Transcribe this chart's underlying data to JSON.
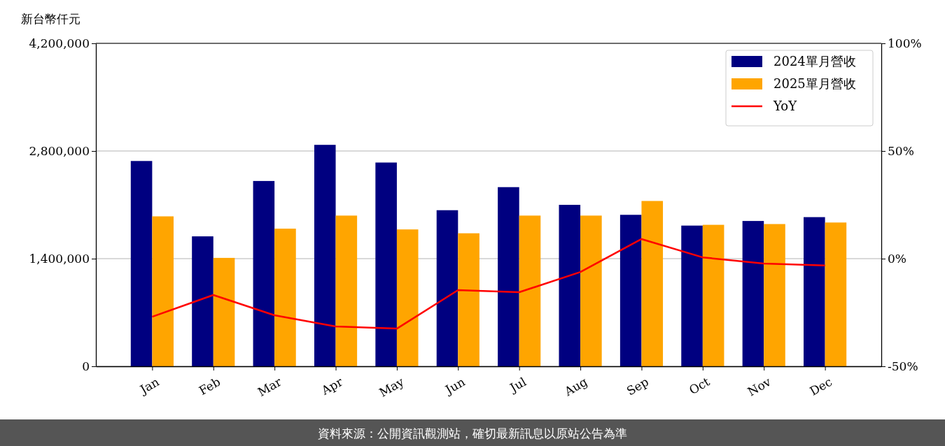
{
  "chart_data": {
    "type": "bar",
    "ylabel": "新台幣仟元",
    "categories": [
      "Jan",
      "Feb",
      "Mar",
      "Apr",
      "May",
      "Jun",
      "Jul",
      "Aug",
      "Sep",
      "Oct",
      "Nov",
      "Dec"
    ],
    "series": [
      {
        "name": "2024單月營收",
        "color": "#000080",
        "values": [
          2670000,
          1690000,
          2410000,
          2880000,
          2650000,
          2030000,
          2330000,
          2100000,
          1970000,
          1830000,
          1890000,
          1940000
        ]
      },
      {
        "name": "2025單月營收",
        "color": "#ffa500",
        "values": [
          1950000,
          1410000,
          1790000,
          1960000,
          1780000,
          1730000,
          1960000,
          1960000,
          2150000,
          1840000,
          1850000,
          1870000
        ]
      },
      {
        "name": "YoY",
        "type": "line",
        "axis": "y2",
        "color": "#ff0000",
        "values": [
          -27,
          -16.9,
          -26.3,
          -31.5,
          -32.5,
          -14.6,
          -15.6,
          -6.2,
          9.1,
          0.6,
          -2.3,
          -3.2
        ]
      }
    ],
    "ylim": [
      0,
      4200000
    ],
    "yticks": [
      {
        "value": 0,
        "label": "0"
      },
      {
        "value": 1400000,
        "label": "1,400,000"
      },
      {
        "value": 2800000,
        "label": "2,800,000"
      },
      {
        "value": 4200000,
        "label": "4,200,000"
      }
    ],
    "y2lim": [
      -50,
      100
    ],
    "y2ticks": [
      {
        "value": -50,
        "label": "-50%"
      },
      {
        "value": 0,
        "label": "0%"
      },
      {
        "value": 50,
        "label": "50%"
      },
      {
        "value": 100,
        "label": "100%"
      }
    ],
    "grid": "y",
    "legend": "top right",
    "line_style": "solid",
    "annotations": [
      "資料來源：公開資訊觀測站，確切最新訊息以原站公告為準"
    ]
  }
}
